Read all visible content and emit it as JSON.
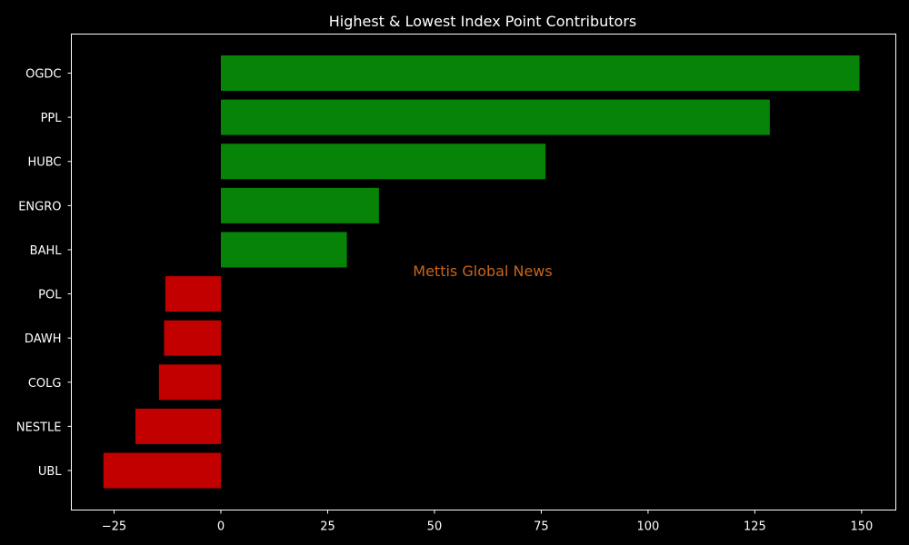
{
  "chart_data": {
    "type": "bar",
    "orientation": "horizontal",
    "title": "Highest & Lowest Index Point Contributors",
    "xlabel": "",
    "ylabel": "",
    "xlim": [
      -35,
      158
    ],
    "xticks": [
      -25,
      0,
      25,
      50,
      75,
      100,
      125,
      150
    ],
    "xtick_labels": [
      "−25",
      "0",
      "25",
      "50",
      "75",
      "100",
      "125",
      "150"
    ],
    "categories": [
      "OGDC",
      "PPL",
      "HUBC",
      "ENGRO",
      "BAHL",
      "POL",
      "DAWH",
      "COLG",
      "NESTLE",
      "UBL"
    ],
    "values": [
      149.5,
      128.5,
      76.0,
      37.0,
      29.5,
      -13.0,
      -13.3,
      -14.5,
      -20.0,
      -27.5
    ],
    "positive_color": "#078407",
    "negative_color": "#c20000",
    "background_color": "#000000",
    "axis_color": "#ffffff",
    "grid": false,
    "legend": "none"
  },
  "watermark": "Mettis Global News"
}
